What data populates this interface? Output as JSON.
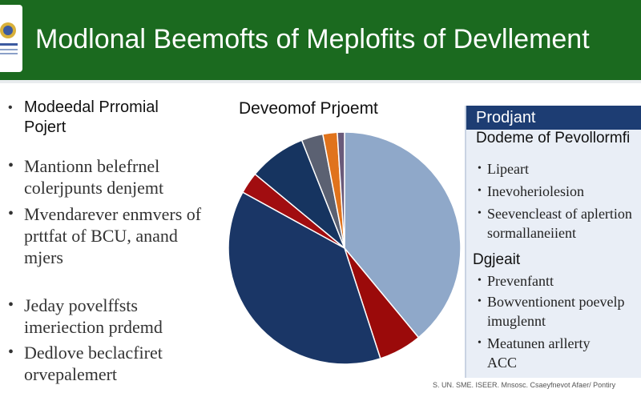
{
  "header": {
    "title": "Modlonal Beemofts of Meplofits of Devllement",
    "bg_color": "#1b6a1f"
  },
  "left": {
    "bullets": [
      {
        "lines": [
          "Modeedal Prromial",
          "Pojert"
        ]
      },
      {
        "lines": [
          "Mantionn belefrnel",
          "colerjpunts denjemt"
        ]
      },
      {
        "lines": [
          "Mvendarever enmvers of",
          "prttfat of BCU, anand",
          "mjers"
        ]
      },
      {
        "lines": [
          "Jeday povelffsts",
          "imeriection prdemd"
        ]
      },
      {
        "lines": [
          "Dedlove beclacfiret",
          "orvepalemert"
        ]
      }
    ]
  },
  "chart": {
    "title": "Deveomof Prjoemt"
  },
  "chart_data": {
    "type": "pie",
    "title": "Deveomof Prjoemt",
    "start_angle_deg": 0,
    "slices": [
      {
        "value": 39,
        "color": "#8fa8c9"
      },
      {
        "value": 6,
        "color": "#9b0a0a"
      },
      {
        "value": 38,
        "color": "#1a3666"
      },
      {
        "value": 3,
        "color": "#a10d10"
      },
      {
        "value": 8,
        "color": "#163460"
      },
      {
        "value": 3,
        "color": "#5b6172"
      },
      {
        "value": 2,
        "color": "#e0731c"
      },
      {
        "value": 1,
        "color": "#6a5a7a"
      }
    ]
  },
  "panel": {
    "header": "Prodjant",
    "subheader": "Dodeme of Pevollormfi",
    "group1": [
      "Lipeart",
      "Inevoheriolesion",
      "Seevencleast of aplertion",
      "sormallaneiient"
    ],
    "section2": "Dgjeait",
    "group2": [
      "Prevenfantt",
      "Bowventionent poevelp",
      "imuglennt",
      "Meatunen arllerty",
      "ACC"
    ],
    "header_color": "#1d3d73"
  },
  "footer": {
    "text": "S. UN. SME. ISEER. Mnsosc. Csaeyfnevot Afaer/ Pontiry"
  }
}
